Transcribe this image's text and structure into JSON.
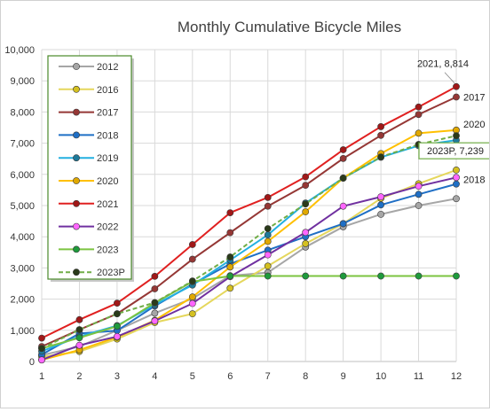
{
  "chart_data": {
    "type": "line",
    "title": "Monthly Cumulative Bicycle Miles",
    "x": [
      1,
      2,
      3,
      4,
      5,
      6,
      7,
      8,
      9,
      10,
      11,
      12
    ],
    "ylim": [
      0,
      10000
    ],
    "yticks": [
      "0",
      "1,000",
      "2,000",
      "3,000",
      "4,000",
      "5,000",
      "6,000",
      "7,000",
      "8,000",
      "9,000",
      "10,000"
    ],
    "xticks": [
      "1",
      "2",
      "3",
      "4",
      "5",
      "6",
      "7",
      "8",
      "9",
      "10",
      "11",
      "12"
    ],
    "grid": true,
    "legend_position": "top-left",
    "series": [
      {
        "name": "2012",
        "color": "#a6a6a6",
        "marker": "#a6a6a6",
        "dash": false,
        "values": [
          200,
          480,
          1000,
          1550,
          2020,
          2750,
          2850,
          3670,
          4320,
          4720,
          5000,
          5220
        ]
      },
      {
        "name": "2016",
        "color": "#e5d75c",
        "marker": "#d4c020",
        "dash": false,
        "values": [
          150,
          320,
          720,
          1250,
          1530,
          2350,
          3060,
          3780,
          4420,
          5230,
          5700,
          6140
        ]
      },
      {
        "name": "2017",
        "color": "#953735",
        "marker": "#953735",
        "dash": false,
        "values": [
          480,
          1020,
          1530,
          2330,
          3280,
          4130,
          4980,
          5650,
          6510,
          7250,
          7920,
          8480
        ]
      },
      {
        "name": "2018",
        "color": "#1f6fc5",
        "marker": "#1f6fc5",
        "dash": false,
        "values": [
          220,
          900,
          990,
          1780,
          2480,
          3130,
          3570,
          4000,
          4420,
          5020,
          5360,
          5690
        ]
      },
      {
        "name": "2019",
        "color": "#23b0e0",
        "marker": "#1e7a9a",
        "dash": false,
        "values": [
          330,
          800,
          1150,
          1820,
          2450,
          3250,
          4060,
          5080,
          5880,
          6550,
          6920,
          7100
        ]
      },
      {
        "name": "2020",
        "color": "#ffc000",
        "marker": "#e0a800",
        "dash": false,
        "values": [
          50,
          370,
          780,
          1320,
          2070,
          3030,
          3850,
          4800,
          5880,
          6670,
          7320,
          7420
        ]
      },
      {
        "name": "2021",
        "color": "#e02020",
        "marker": "#a01818",
        "dash": false,
        "values": [
          750,
          1340,
          1870,
          2730,
          3750,
          4770,
          5260,
          5920,
          6790,
          7530,
          8160,
          8814
        ]
      },
      {
        "name": "2022",
        "color": "#7030a0",
        "marker": "#ff66ff",
        "dash": false,
        "values": [
          50,
          520,
          800,
          1300,
          1860,
          2720,
          3420,
          4140,
          4980,
          5280,
          5620,
          5900
        ]
      },
      {
        "name": "2023",
        "color": "#7cc440",
        "marker": "#1e9a3c",
        "dash": false,
        "values": [
          420,
          760,
          1130,
          1880,
          2560,
          2740,
          2740,
          2740,
          2740,
          2740,
          2740,
          2740
        ]
      },
      {
        "name": "2023P",
        "color": "#70ad47",
        "marker": "#2a3a1a",
        "dash": true,
        "values": [
          420,
          1020,
          1530,
          1890,
          2580,
          3350,
          4260,
          5050,
          5880,
          6560,
          6960,
          7239
        ]
      }
    ],
    "annotations": {
      "top": "2021, 8,814",
      "boxed": "2023P, 7,239",
      "right_2017": "2017",
      "right_2020": "2020",
      "right_2018": "2018"
    }
  }
}
